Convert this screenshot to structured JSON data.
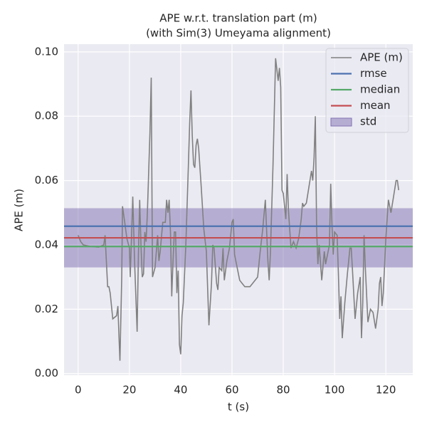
{
  "chart_data": {
    "type": "line",
    "title": "APE w.r.t. translation part (m)",
    "subtitle": "(with Sim(3) Umeyama alignment)",
    "xlabel": "t (s)",
    "ylabel": "APE (m)",
    "x": [
      0,
      1,
      2,
      5,
      8,
      10,
      10.5,
      11,
      11.5,
      12,
      12.5,
      13,
      13.5,
      15,
      15.5,
      16,
      16.3,
      17,
      17.3,
      18,
      19,
      20,
      20.3,
      21,
      21.3,
      22,
      23,
      23.5,
      24,
      24.5,
      25,
      25.5,
      26,
      26.5,
      27,
      28,
      28.5,
      29,
      30,
      31,
      31.5,
      32,
      33,
      34,
      34.5,
      35,
      35.5,
      36,
      36.5,
      37,
      37.5,
      38,
      38.5,
      39,
      39.5,
      40,
      40.5,
      41,
      42,
      43,
      43.5,
      44,
      44.5,
      45,
      45.5,
      46,
      46.5,
      47,
      48,
      49,
      50,
      51,
      52,
      52.5,
      53,
      54,
      54.5,
      55,
      56,
      56.5,
      57,
      58,
      59,
      60,
      60.5,
      61,
      62,
      63,
      64,
      65,
      66,
      67,
      68,
      70,
      71,
      72,
      73,
      74,
      74.5,
      75,
      76,
      77,
      78,
      78.5,
      79,
      79.5,
      80,
      81,
      81.5,
      82,
      82.5,
      83,
      84,
      85,
      86,
      87,
      87.5,
      88,
      89,
      90,
      91,
      91.5,
      92,
      92.5,
      93,
      93.5,
      94,
      95,
      96,
      96.5,
      97,
      98,
      98.5,
      99,
      99.5,
      100,
      101,
      101.5,
      102,
      102.5,
      103,
      104,
      105,
      106,
      106.5,
      107,
      108,
      109,
      110,
      110.5,
      111,
      111.5,
      112,
      113,
      114,
      115,
      116,
      117,
      117.5,
      118,
      118.5,
      119,
      120,
      121,
      122,
      123,
      124,
      124.5,
      125
    ],
    "series": [
      {
        "name": "APE (m)",
        "color": "#808080",
        "values": [
          0.043,
          0.041,
          0.04,
          0.0395,
          0.0393,
          0.04,
          0.043,
          0.035,
          0.027,
          0.027,
          0.025,
          0.021,
          0.017,
          0.018,
          0.021,
          0.01,
          0.004,
          0.03,
          0.052,
          0.048,
          0.042,
          0.039,
          0.03,
          0.047,
          0.055,
          0.035,
          0.013,
          0.037,
          0.054,
          0.04,
          0.03,
          0.031,
          0.044,
          0.041,
          0.05,
          0.075,
          0.092,
          0.03,
          0.033,
          0.043,
          0.035,
          0.038,
          0.047,
          0.047,
          0.054,
          0.05,
          0.054,
          0.044,
          0.024,
          0.035,
          0.044,
          0.044,
          0.025,
          0.032,
          0.009,
          0.006,
          0.018,
          0.022,
          0.04,
          0.065,
          0.078,
          0.088,
          0.074,
          0.065,
          0.064,
          0.071,
          0.073,
          0.07,
          0.058,
          0.045,
          0.038,
          0.015,
          0.028,
          0.04,
          0.039,
          0.028,
          0.026,
          0.033,
          0.032,
          0.039,
          0.029,
          0.035,
          0.039,
          0.047,
          0.048,
          0.037,
          0.033,
          0.029,
          0.028,
          0.027,
          0.027,
          0.027,
          0.028,
          0.03,
          0.038,
          0.045,
          0.054,
          0.035,
          0.029,
          0.038,
          0.065,
          0.098,
          0.091,
          0.095,
          0.089,
          0.057,
          0.056,
          0.048,
          0.062,
          0.051,
          0.045,
          0.039,
          0.041,
          0.039,
          0.042,
          0.048,
          0.053,
          0.052,
          0.053,
          0.058,
          0.063,
          0.06,
          0.067,
          0.08,
          0.045,
          0.034,
          0.04,
          0.029,
          0.038,
          0.034,
          0.036,
          0.04,
          0.059,
          0.046,
          0.037,
          0.044,
          0.043,
          0.031,
          0.017,
          0.024,
          0.011,
          0.022,
          0.031,
          0.039,
          0.039,
          0.032,
          0.017,
          0.025,
          0.03,
          0.011,
          0.022,
          0.043,
          0.033,
          0.016,
          0.02,
          0.019,
          0.014,
          0.02,
          0.028,
          0.03,
          0.021,
          0.025,
          0.042,
          0.054,
          0.05,
          0.055,
          0.06,
          0.06,
          0.057
        ]
      }
    ],
    "stats": [
      {
        "name": "rmse",
        "color": "#4c72b0",
        "value": 0.0458
      },
      {
        "name": "median",
        "color": "#55a868",
        "value": 0.0395
      },
      {
        "name": "mean",
        "color": "#c44e52",
        "value": 0.0422
      }
    ],
    "std": {
      "name": "std",
      "color": "#8172b2",
      "value": 0.0092
    },
    "xlim": [
      -5.5,
      130.5
    ],
    "ylim": [
      -0.0005,
      0.1024
    ],
    "xticks": [
      0,
      20,
      40,
      60,
      80,
      100,
      120
    ],
    "yticks": [
      {
        "value": 0,
        "label": "0.00"
      },
      {
        "value": 0.02,
        "label": "0.02"
      },
      {
        "value": 0.04,
        "label": "0.04"
      },
      {
        "value": 0.06,
        "label": "0.06"
      },
      {
        "value": 0.08,
        "label": "0.08"
      },
      {
        "value": 0.1,
        "label": "0.10"
      }
    ],
    "grid": true,
    "legend": "upper right"
  }
}
